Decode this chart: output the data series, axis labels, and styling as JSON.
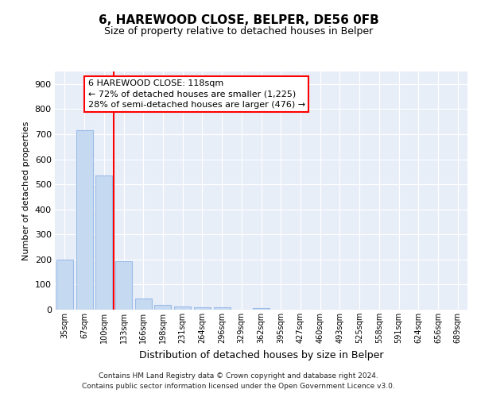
{
  "title1": "6, HAREWOOD CLOSE, BELPER, DE56 0FB",
  "title2": "Size of property relative to detached houses in Belper",
  "xlabel": "Distribution of detached houses by size in Belper",
  "ylabel": "Number of detached properties",
  "categories": [
    "35sqm",
    "67sqm",
    "100sqm",
    "133sqm",
    "166sqm",
    "198sqm",
    "231sqm",
    "264sqm",
    "296sqm",
    "329sqm",
    "362sqm",
    "395sqm",
    "427sqm",
    "460sqm",
    "493sqm",
    "525sqm",
    "558sqm",
    "591sqm",
    "624sqm",
    "656sqm",
    "689sqm"
  ],
  "values": [
    200,
    715,
    535,
    193,
    45,
    18,
    14,
    11,
    8,
    0,
    7,
    0,
    0,
    0,
    0,
    0,
    0,
    0,
    0,
    0,
    0
  ],
  "bar_color": "#c5d9f1",
  "bar_edge_color": "#9bbce8",
  "red_line_x": 2.5,
  "ann_line1": "6 HAREWOOD CLOSE: 118sqm",
  "ann_line2": "← 72% of detached houses are smaller (1,225)",
  "ann_line3": "28% of semi-detached houses are larger (476) →",
  "ylim": [
    0,
    950
  ],
  "yticks": [
    0,
    100,
    200,
    300,
    400,
    500,
    600,
    700,
    800,
    900
  ],
  "footer1": "Contains HM Land Registry data © Crown copyright and database right 2024.",
  "footer2": "Contains public sector information licensed under the Open Government Licence v3.0.",
  "background_color": "#ffffff",
  "plot_bg_color": "#e8eef8",
  "grid_color": "#ffffff",
  "title1_fontsize": 11,
  "title2_fontsize": 9,
  "ylabel_fontsize": 8,
  "xlabel_fontsize": 9,
  "ann_fontsize": 8
}
